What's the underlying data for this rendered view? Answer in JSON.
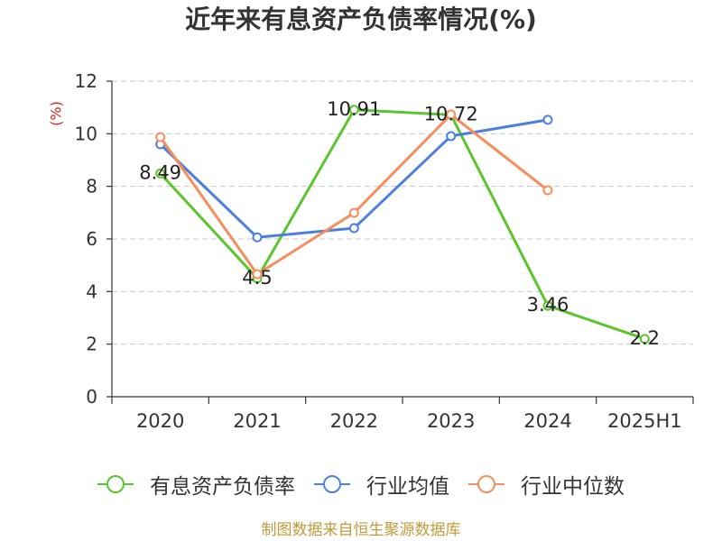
{
  "chart_data": {
    "type": "line",
    "title": "近年来有息资产负债率情况(%)",
    "ylabel": "(%)",
    "categories": [
      "2020",
      "2021",
      "2022",
      "2023",
      "2024",
      "2025H1"
    ],
    "ylim": [
      0,
      12
    ],
    "yticks": [
      0,
      2,
      4,
      6,
      8,
      10,
      12
    ],
    "grid": true,
    "legend_position": "bottom",
    "series": [
      {
        "name": "有息资产负债率",
        "color": "#5ac52c",
        "values": [
          8.49,
          4.5,
          10.91,
          10.72,
          3.46,
          2.2
        ],
        "data_labels": [
          "8.49",
          "4.5",
          "10.91",
          "10.72",
          "3.46",
          "2.2"
        ]
      },
      {
        "name": "行业均值",
        "color": "#4e7fde",
        "values": [
          9.6,
          6.06,
          6.41,
          9.91,
          10.53,
          null
        ]
      },
      {
        "name": "行业中位数",
        "color": "#f78d5d",
        "values": [
          9.87,
          4.66,
          6.99,
          10.73,
          7.85,
          null
        ]
      }
    ]
  },
  "source_note": "制图数据来自恒生聚源数据库",
  "colors": {
    "ylabel": "#e0201a",
    "source_note": "#c19b3c"
  }
}
